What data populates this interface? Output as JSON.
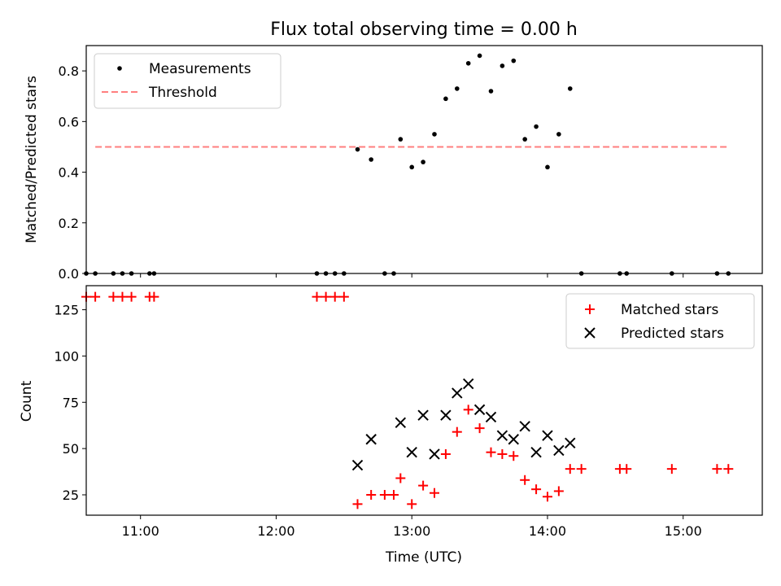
{
  "title": "Flux total observing time = 0.00 h",
  "colors": {
    "measurement": "#000000",
    "threshold": "#ff7f7f",
    "matched": "#ff0000",
    "predicted": "#000000",
    "axis": "#000000"
  },
  "chart_data": [
    {
      "type": "scatter",
      "title": "Flux total observing time = 0.00 h",
      "xlabel": "",
      "ylabel": "Matched/Predicted stars",
      "xlim": [
        "10:36",
        "15:35"
      ],
      "ylim": [
        0,
        0.9
      ],
      "yticks": [
        0.0,
        0.2,
        0.4,
        0.6,
        0.8
      ],
      "ytick_labels": [
        "0.0",
        "0.2",
        "0.4",
        "0.6",
        "0.8"
      ],
      "xticks": [
        "11:00",
        "12:00",
        "13:00",
        "14:00",
        "15:00"
      ],
      "xtick_labels": [
        "",
        "",
        "",
        "",
        ""
      ],
      "legend": {
        "position": "top-left",
        "entries": [
          "Measurements",
          "Threshold"
        ]
      },
      "series": [
        {
          "name": "Measurements",
          "marker": "dot",
          "x": [
            "10:36",
            "10:40",
            "10:48",
            "10:52",
            "10:56",
            "11:04",
            "11:06",
            "12:18",
            "12:22",
            "12:26",
            "12:30",
            "12:48",
            "12:52",
            "12:36",
            "12:42",
            "12:55",
            "13:00",
            "13:05",
            "13:10",
            "13:15",
            "13:20",
            "13:25",
            "13:30",
            "13:35",
            "13:40",
            "13:45",
            "13:50",
            "13:55",
            "14:00",
            "14:05",
            "14:10",
            "14:15",
            "14:32",
            "14:35",
            "14:55",
            "15:15",
            "15:20"
          ],
          "y": [
            0,
            0,
            0,
            0,
            0,
            0,
            0,
            0,
            0,
            0,
            0,
            0,
            0,
            0.49,
            0.45,
            0.53,
            0.42,
            0.44,
            0.55,
            0.69,
            0.73,
            0.83,
            0.86,
            0.72,
            0.82,
            0.84,
            0.53,
            0.58,
            0.42,
            0.55,
            0.73,
            0,
            0,
            0,
            0,
            0,
            0
          ]
        },
        {
          "name": "Threshold",
          "line": "dashed",
          "x": [
            "10:40",
            "15:20"
          ],
          "y": [
            0.5,
            0.5
          ]
        }
      ]
    },
    {
      "type": "scatter",
      "title": "",
      "xlabel": "Time (UTC)",
      "ylabel": "Count",
      "xlim": [
        "10:36",
        "15:35"
      ],
      "ylim": [
        14,
        138
      ],
      "yticks": [
        25,
        50,
        75,
        100,
        125
      ],
      "ytick_labels": [
        "25",
        "50",
        "75",
        "100",
        "125"
      ],
      "xticks": [
        "11:00",
        "12:00",
        "13:00",
        "14:00",
        "15:00"
      ],
      "xtick_labels": [
        "11:00",
        "12:00",
        "13:00",
        "14:00",
        "15:00"
      ],
      "legend": {
        "position": "top-right",
        "entries": [
          "Matched stars",
          "Predicted stars"
        ]
      },
      "series": [
        {
          "name": "Matched stars",
          "marker": "plus",
          "x": [
            "10:36",
            "10:40",
            "10:48",
            "10:52",
            "10:56",
            "11:04",
            "11:06",
            "12:18",
            "12:22",
            "12:26",
            "12:30",
            "12:36",
            "12:42",
            "12:48",
            "12:52",
            "12:55",
            "13:00",
            "13:05",
            "13:10",
            "13:15",
            "13:20",
            "13:25",
            "13:30",
            "13:35",
            "13:40",
            "13:45",
            "13:50",
            "13:55",
            "14:00",
            "14:05",
            "14:10",
            "14:15",
            "14:32",
            "14:35",
            "14:55",
            "15:15",
            "15:20"
          ],
          "y": [
            132,
            132,
            132,
            132,
            132,
            132,
            132,
            132,
            132,
            132,
            132,
            20,
            25,
            25,
            25,
            34,
            20,
            30,
            26,
            47,
            59,
            71,
            61,
            48,
            47,
            46,
            33,
            28,
            24,
            27,
            39,
            39,
            39,
            39,
            39,
            39,
            39
          ]
        },
        {
          "name": "Predicted stars",
          "marker": "x",
          "x": [
            "12:36",
            "12:42",
            "12:55",
            "13:00",
            "13:05",
            "13:10",
            "13:15",
            "13:20",
            "13:25",
            "13:30",
            "13:35",
            "13:40",
            "13:45",
            "13:50",
            "13:55",
            "14:00",
            "14:05",
            "14:10"
          ],
          "y": [
            41,
            55,
            64,
            48,
            68,
            47,
            68,
            80,
            85,
            71,
            67,
            57,
            55,
            62,
            48,
            57,
            49,
            53
          ]
        }
      ]
    }
  ]
}
